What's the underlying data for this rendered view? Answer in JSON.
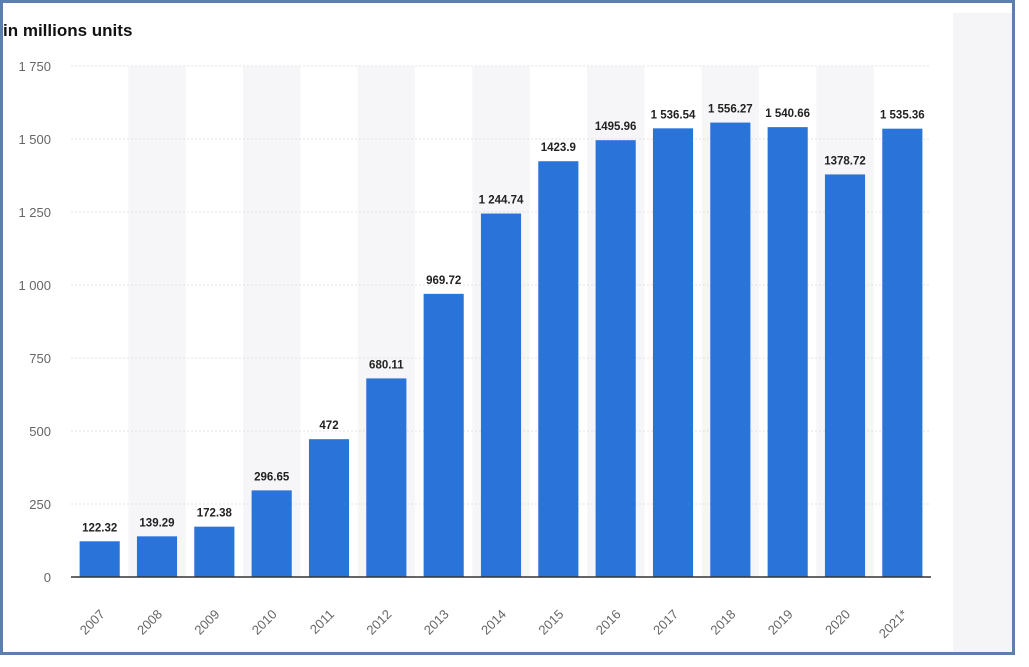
{
  "chart_data": {
    "type": "bar",
    "title": "",
    "xlabel": "",
    "ylabel": "in millions units",
    "ylim": [
      0,
      1750
    ],
    "yticks": [
      "0",
      "250",
      "500",
      "750",
      "1 000",
      "1 250",
      "1 500",
      "1 750"
    ],
    "grid": true,
    "categories": [
      "2007",
      "2008",
      "2009",
      "2010",
      "2011",
      "2012",
      "2013",
      "2014",
      "2015",
      "2016",
      "2017",
      "2018",
      "2019",
      "2020",
      "2021*"
    ],
    "values": [
      122.32,
      139.29,
      172.38,
      296.65,
      472,
      680.11,
      969.72,
      1244.74,
      1423.9,
      1495.96,
      1536.54,
      1556.27,
      1540.66,
      1378.72,
      1535.36
    ],
    "data_labels": [
      "122.32",
      "139.29",
      "172.38",
      "296.65",
      "472",
      "680.11",
      "969.72",
      "1 244.74",
      "1423.9",
      "1495.96",
      "1 536.54",
      "1 556.27",
      "1 540.66",
      "1378.72",
      "1 535.36"
    ],
    "bar_color": "#2a74d9",
    "band_color": "#f6f6f8"
  }
}
